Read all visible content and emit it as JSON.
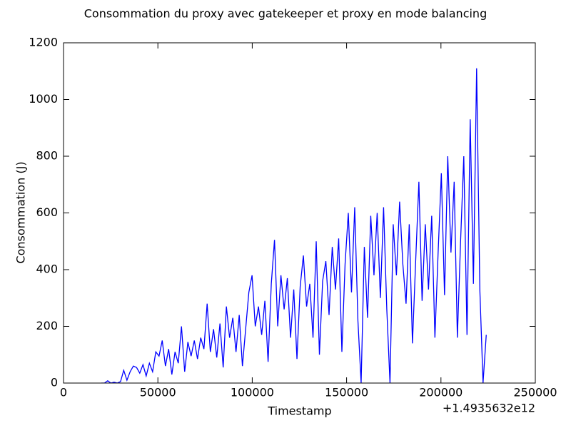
{
  "chart_data": {
    "type": "line",
    "title": "Consommation du proxy avec gatekeeper et proxy en mode balancing",
    "x_label": "Timestamp",
    "y_label": "Consommation (J)",
    "x_offset_label": "+1.4935632e12",
    "x": [
      20000,
      21700,
      23400,
      25100,
      26800,
      28500,
      30200,
      31900,
      33600,
      35300,
      37000,
      38700,
      40400,
      42100,
      43800,
      45500,
      47200,
      48900,
      50600,
      52300,
      54000,
      55700,
      57400,
      59100,
      60800,
      62500,
      64200,
      65900,
      67600,
      69300,
      71000,
      72700,
      74400,
      76100,
      77800,
      79500,
      81200,
      82900,
      84600,
      86300,
      88000,
      89700,
      91400,
      93100,
      94800,
      96500,
      98200,
      99900,
      101600,
      103300,
      105000,
      106700,
      108400,
      110100,
      111800,
      113500,
      115200,
      116900,
      118600,
      120300,
      122000,
      123700,
      125400,
      127100,
      128800,
      130500,
      132200,
      133900,
      135600,
      137300,
      139000,
      140700,
      142400,
      144100,
      145800,
      147500,
      149200,
      150900,
      152600,
      154300,
      156000,
      157700,
      159400,
      161100,
      162800,
      164500,
      166200,
      167900,
      169600,
      171300,
      173000,
      174700,
      176400,
      178100,
      179800,
      181500,
      183200,
      184900,
      186600,
      188300,
      190000,
      191700,
      193400,
      195100,
      196800,
      198500,
      200200,
      201900,
      203600,
      205300,
      207000,
      208700,
      210400,
      212100,
      213800,
      215500,
      217200,
      218900,
      220600,
      222300,
      224000
    ],
    "series": [
      {
        "name": "Consommation",
        "color": "#0000ff",
        "values": [
          0,
          0,
          8,
          0,
          3,
          0,
          5,
          45,
          10,
          40,
          60,
          55,
          35,
          65,
          25,
          70,
          40,
          110,
          95,
          150,
          60,
          120,
          30,
          110,
          70,
          200,
          40,
          145,
          95,
          150,
          85,
          160,
          120,
          280,
          110,
          190,
          90,
          210,
          55,
          270,
          160,
          230,
          110,
          240,
          60,
          190,
          320,
          380,
          200,
          270,
          170,
          290,
          75,
          350,
          505,
          200,
          380,
          260,
          370,
          160,
          330,
          85,
          340,
          450,
          270,
          350,
          160,
          500,
          100,
          360,
          430,
          240,
          480,
          330,
          510,
          110,
          420,
          600,
          320,
          620,
          220,
          0,
          480,
          230,
          590,
          380,
          600,
          300,
          620,
          260,
          0,
          560,
          380,
          640,
          420,
          280,
          560,
          140,
          430,
          710,
          290,
          560,
          330,
          590,
          160,
          460,
          740,
          310,
          800,
          460,
          710,
          160,
          500,
          800,
          170,
          930,
          350,
          1110,
          330,
          0,
          170
        ]
      }
    ],
    "xlim": [
      0,
      250000
    ],
    "ylim": [
      0,
      1200
    ],
    "xticks": [
      0,
      50000,
      100000,
      150000,
      200000,
      250000
    ],
    "yticks": [
      0,
      200,
      400,
      600,
      800,
      1000,
      1200
    ]
  }
}
